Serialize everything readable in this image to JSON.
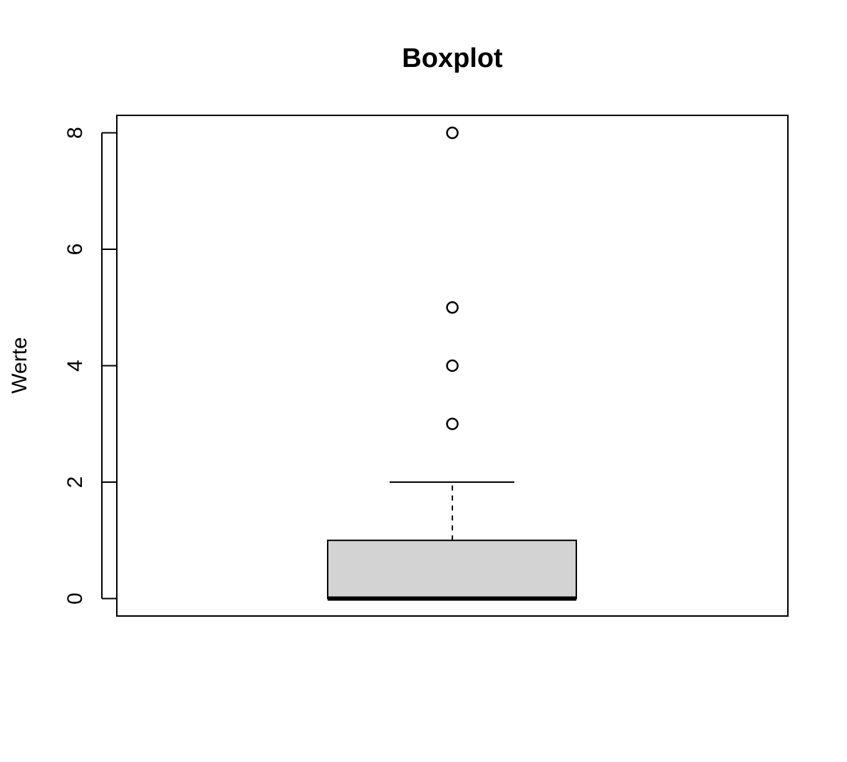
{
  "chart_data": {
    "type": "boxplot",
    "title": "Boxplot",
    "xlabel": "",
    "ylabel": "Werte",
    "ylim": [
      -0.3,
      8.3
    ],
    "y_ticks": [
      0,
      2,
      4,
      6,
      8
    ],
    "y_tick_labels": [
      "0",
      "2",
      "4",
      "6",
      "8"
    ],
    "grid": false,
    "legend": "none",
    "box": {
      "min_whisker": 0,
      "q1": 0,
      "median": 0,
      "q3": 1,
      "max_whisker": 2,
      "outliers": [
        3,
        4,
        5,
        8
      ]
    },
    "box_fill": "#d3d3d3",
    "line_color": "#000000"
  }
}
